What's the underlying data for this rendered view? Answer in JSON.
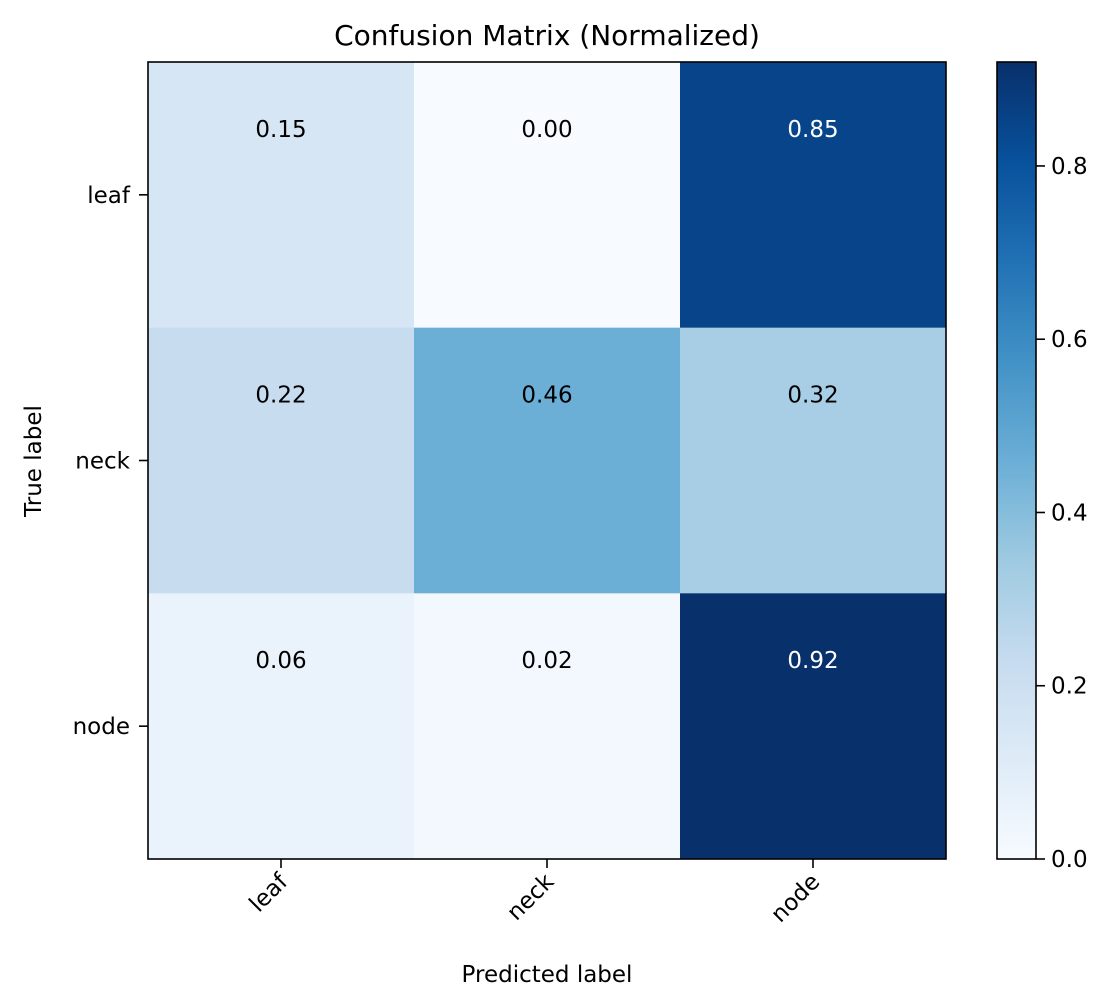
{
  "chart_data": {
    "type": "heatmap",
    "title": "Confusion Matrix (Normalized)",
    "xlabel": "Predicted label",
    "ylabel": "True label",
    "x_categories": [
      "leaf",
      "neck",
      "node"
    ],
    "y_categories": [
      "leaf",
      "neck",
      "node"
    ],
    "matrix": [
      [
        0.15,
        0.0,
        0.85
      ],
      [
        0.22,
        0.46,
        0.32
      ],
      [
        0.06,
        0.02,
        0.92
      ]
    ],
    "value_labels": [
      [
        "0.15",
        "0.00",
        "0.85"
      ],
      [
        "0.22",
        "0.46",
        "0.32"
      ],
      [
        "0.06",
        "0.02",
        "0.92"
      ]
    ],
    "colorbar": {
      "range": [
        0,
        0.92
      ],
      "ticks": [
        0.0,
        0.2,
        0.4,
        0.6,
        0.8
      ],
      "tick_labels": [
        "0.0",
        "0.2",
        "0.4",
        "0.6",
        "0.8"
      ]
    },
    "colormap": "Blues",
    "x_tick_rotation": "45°",
    "grid": false
  }
}
